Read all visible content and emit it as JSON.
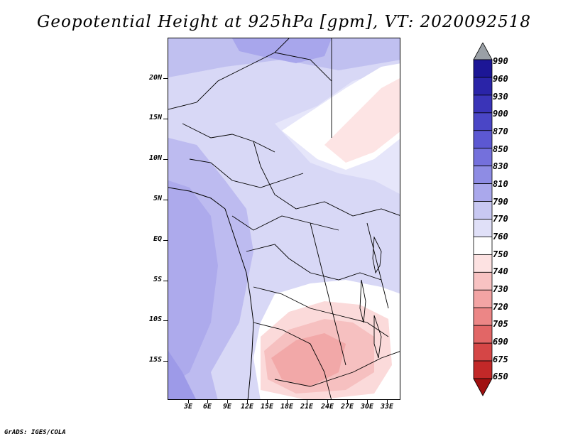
{
  "title": "Geopotential Height at 925hPa [gpm], VT: 2020092518",
  "credit": "GrADS: IGES/COLA",
  "lat_ticks": [
    "20N",
    "15N",
    "10N",
    "5N",
    "EQ",
    "5S",
    "10S",
    "15S"
  ],
  "lon_ticks": [
    "3E",
    "6E",
    "9E",
    "12E",
    "15E",
    "18E",
    "21E",
    "24E",
    "27E",
    "30E",
    "33E"
  ],
  "colorbar": {
    "levels": [
      "990",
      "960",
      "930",
      "900",
      "870",
      "850",
      "830",
      "810",
      "790",
      "770",
      "760",
      "750",
      "740",
      "730",
      "720",
      "705",
      "690",
      "675",
      "650"
    ],
    "colors": [
      "#9aa0a6",
      "#1c1696",
      "#2a24a8",
      "#3a34b8",
      "#4a46c6",
      "#5c58d2",
      "#7470dc",
      "#8e8ce4",
      "#aaa8ec",
      "#c8c8f2",
      "#e0e0f8",
      "#ffffff",
      "#fde2e2",
      "#f8c2c2",
      "#f3a4a4",
      "#ec8686",
      "#e26666",
      "#d54646",
      "#c22828",
      "#a01010"
    ]
  }
}
